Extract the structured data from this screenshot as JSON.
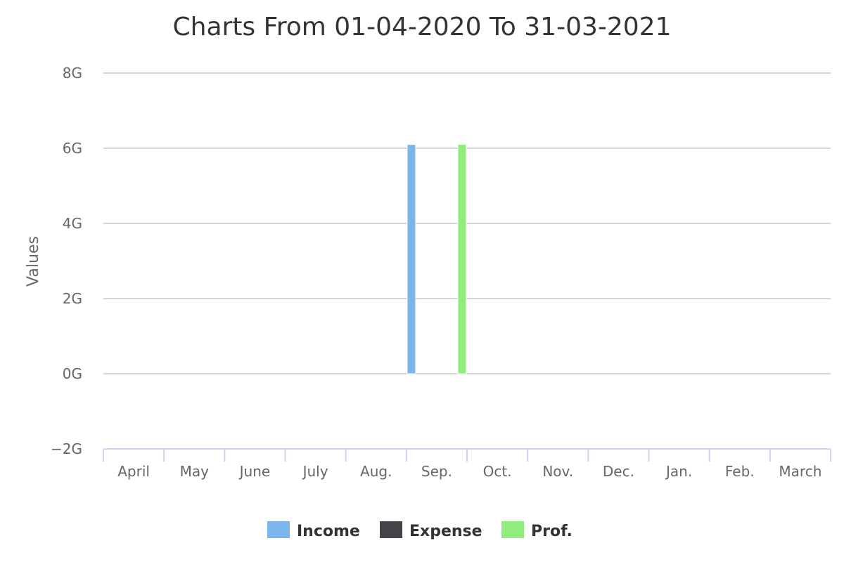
{
  "chart_data": {
    "type": "bar",
    "title": "Charts From 01-04-2020 To 31-03-2021",
    "xlabel": "",
    "ylabel": "Values",
    "categories": [
      "April",
      "May",
      "June",
      "July",
      "Aug.",
      "Sep.",
      "Oct.",
      "Nov.",
      "Dec.",
      "Jan.",
      "Feb.",
      "March"
    ],
    "y_ticks": [
      -2,
      0,
      2,
      4,
      6,
      8
    ],
    "y_tick_labels": [
      "−2G",
      "0G",
      "2G",
      "4G",
      "6G",
      "8G"
    ],
    "ylim": [
      -2,
      8
    ],
    "unit_suffix": "G",
    "grid": true,
    "legend_position": "bottom-center",
    "series": [
      {
        "name": "Income",
        "color": "#7cb5ec",
        "values": [
          0,
          0,
          0,
          0,
          0,
          6.1,
          0,
          0,
          0,
          0,
          0,
          0
        ]
      },
      {
        "name": "Expense",
        "color": "#434348",
        "values": [
          0,
          0,
          0,
          0,
          0,
          0,
          0,
          0,
          0,
          0,
          0,
          0
        ]
      },
      {
        "name": "Prof.",
        "color": "#90ed7d",
        "values": [
          0,
          0,
          0,
          0,
          0,
          6.1,
          0,
          0,
          0,
          0,
          0,
          0
        ]
      }
    ]
  }
}
